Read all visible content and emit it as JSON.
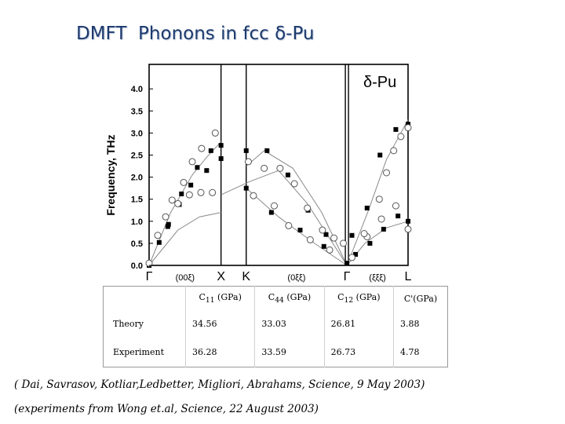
{
  "slide": {
    "title": "DMFT  Phonons in fcc δ-Pu",
    "citations": [
      "( Dai, Savrasov, Kotliar,Ledbetter, Migliori, Abrahams, Science, 9 May 2003)",
      "(experiments from Wong et.al, Science, 22 August 2003)"
    ]
  },
  "chart_data": {
    "type": "scatter",
    "title": "δ-Pu",
    "ylabel": "Frequency, THz",
    "ylim": [
      0.0,
      4.3
    ],
    "yticks": [
      "0.0",
      "0.5",
      "1.0",
      "1.5",
      "2.0",
      "2.5",
      "3.0",
      "3.5",
      "4.0"
    ],
    "grid": false,
    "x_segments": [
      {
        "from_label": "Γ",
        "to_label": "X",
        "direction": "(00ξ)"
      },
      {
        "from_label": "K",
        "to_label": "Γ",
        "direction": "(0ξξ)"
      },
      {
        "from_label": "Γ",
        "to_label": "L",
        "direction": "(ξξξ)"
      }
    ],
    "symmetry_points": [
      "Γ",
      "X",
      "K",
      "Γ",
      "L"
    ],
    "x_positions": {
      "Γ1": 0.0,
      "X": 1.0,
      "K": 1.35,
      "Γ2": 2.75,
      "L": 3.6
    },
    "series": [
      {
        "marker": "filled-square",
        "points": [
          [
            0.0,
            0.0
          ],
          [
            0.14,
            0.52
          ],
          [
            0.26,
            0.88
          ],
          [
            0.42,
            1.38
          ],
          [
            0.58,
            1.82
          ],
          [
            0.8,
            2.15
          ],
          [
            1.0,
            2.72
          ],
          [
            0.27,
            0.93
          ],
          [
            0.45,
            1.62
          ],
          [
            0.67,
            2.22
          ],
          [
            0.86,
            2.6
          ],
          [
            1.0,
            2.42
          ],
          [
            1.35,
            2.6
          ],
          [
            1.64,
            2.6
          ],
          [
            1.93,
            2.05
          ],
          [
            2.21,
            1.25
          ],
          [
            2.46,
            0.7
          ],
          [
            2.75,
            0.05
          ],
          [
            1.35,
            1.75
          ],
          [
            1.7,
            1.2
          ],
          [
            2.1,
            0.8
          ],
          [
            2.43,
            0.43
          ],
          [
            2.82,
            0.68
          ],
          [
            3.03,
            1.3
          ],
          [
            3.21,
            2.5
          ],
          [
            3.43,
            3.08
          ],
          [
            3.6,
            3.2
          ],
          [
            2.87,
            0.25
          ],
          [
            3.07,
            0.5
          ],
          [
            3.26,
            0.82
          ],
          [
            3.46,
            1.12
          ],
          [
            3.6,
            1.0
          ]
        ]
      },
      {
        "marker": "open-circle",
        "points": [
          [
            0.0,
            0.05
          ],
          [
            0.12,
            0.68
          ],
          [
            0.23,
            1.1
          ],
          [
            0.4,
            1.4
          ],
          [
            0.56,
            1.6
          ],
          [
            0.72,
            1.65
          ],
          [
            0.88,
            1.65
          ],
          [
            0.32,
            1.48
          ],
          [
            0.48,
            1.88
          ],
          [
            0.6,
            2.35
          ],
          [
            0.73,
            2.65
          ],
          [
            0.92,
            3.0
          ],
          [
            1.38,
            2.35
          ],
          [
            1.6,
            2.2
          ],
          [
            1.82,
            2.2
          ],
          [
            2.02,
            1.85
          ],
          [
            2.2,
            1.3
          ],
          [
            2.41,
            0.8
          ],
          [
            2.57,
            0.62
          ],
          [
            2.7,
            0.5
          ],
          [
            1.45,
            1.58
          ],
          [
            1.74,
            1.35
          ],
          [
            1.94,
            0.9
          ],
          [
            2.24,
            0.58
          ],
          [
            2.51,
            0.35
          ],
          [
            2.82,
            0.18
          ],
          [
            3.03,
            0.65
          ],
          [
            3.23,
            1.05
          ],
          [
            3.43,
            1.35
          ],
          [
            3.6,
            0.82
          ],
          [
            2.99,
            0.72
          ],
          [
            3.2,
            1.5
          ],
          [
            3.3,
            2.1
          ],
          [
            3.4,
            2.6
          ],
          [
            3.5,
            2.92
          ],
          [
            3.6,
            3.12
          ]
        ]
      }
    ],
    "curves": [
      [
        [
          0.0,
          0.0
        ],
        [
          0.3,
          1.2
        ],
        [
          0.6,
          2.05
        ],
        [
          0.8,
          2.45
        ],
        [
          1.0,
          2.8
        ]
      ],
      [
        [
          0.0,
          0.0
        ],
        [
          0.4,
          0.8
        ],
        [
          0.7,
          1.1
        ],
        [
          1.0,
          1.2
        ]
      ],
      [
        [
          1.35,
          2.25
        ],
        [
          1.6,
          2.6
        ],
        [
          2.0,
          2.2
        ],
        [
          2.4,
          1.2
        ],
        [
          2.75,
          0.0
        ]
      ],
      [
        [
          1.35,
          1.75
        ],
        [
          1.8,
          1.1
        ],
        [
          2.3,
          0.5
        ],
        [
          2.75,
          0.0
        ]
      ],
      [
        [
          1.0,
          1.6
        ],
        [
          1.4,
          1.9
        ],
        [
          1.8,
          2.15
        ],
        [
          2.2,
          1.4
        ],
        [
          2.75,
          0.0
        ]
      ],
      [
        [
          2.75,
          0.0
        ],
        [
          3.05,
          1.25
        ],
        [
          3.3,
          2.4
        ],
        [
          3.6,
          3.3
        ]
      ],
      [
        [
          2.75,
          0.0
        ],
        [
          3.0,
          0.5
        ],
        [
          3.3,
          0.85
        ],
        [
          3.6,
          1.0
        ]
      ]
    ]
  },
  "table": {
    "headers": [
      "",
      "C11 (GPa)",
      "C44 (GPa)",
      "C12 (GPa)",
      "C'(GPa)"
    ],
    "rows": [
      [
        "Theory",
        "34.56",
        "33.03",
        "26.81",
        "3.88"
      ],
      [
        "Experiment",
        "36.28",
        "33.59",
        "26.73",
        "4.78"
      ]
    ]
  }
}
